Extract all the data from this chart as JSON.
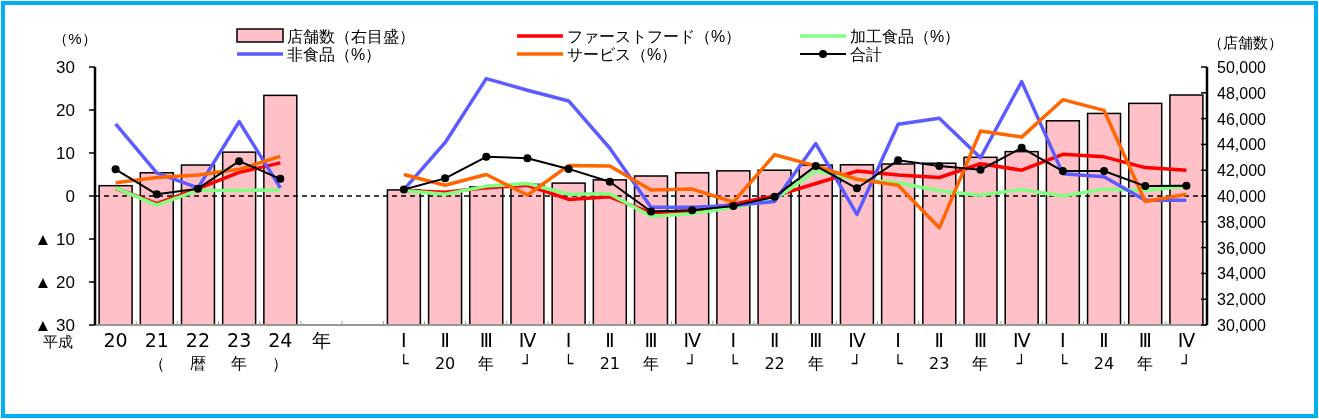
{
  "chart_data": {
    "type": "bar",
    "ylabel": "（%）",
    "y2label": "（店舗数）",
    "categories": [
      "20\n",
      "21\n（",
      "22\n暦",
      "23\n年",
      "24\n）",
      "年",
      null,
      "Ⅰ\n└",
      "Ⅱ\n20",
      "Ⅲ\n年",
      "Ⅳ\n┘",
      "Ⅰ\n└",
      "Ⅱ\n21",
      "Ⅲ\n年",
      "Ⅳ\n┘",
      "Ⅰ\n└",
      "Ⅱ\n22",
      "Ⅲ\n年",
      "Ⅳ\n┘",
      "Ⅰ\n└",
      "Ⅱ\n23",
      "Ⅲ\n年",
      "Ⅳ\n┘",
      "Ⅰ\n└",
      "Ⅱ\n24",
      "Ⅲ\n年",
      "Ⅳ\n┘"
    ],
    "series": [
      {
        "name": "店舗数（右目盛）",
        "axis": "y2",
        "color": "#ffc0c8",
        "values": [
          40800,
          41800,
          42400,
          43400,
          47800,
          null,
          null,
          40470,
          40300,
          40700,
          40900,
          41000,
          41250,
          41550,
          41800,
          41950,
          42000,
          42400,
          42420,
          42480,
          42540,
          43000,
          43440,
          45830,
          46400,
          47180,
          47830
        ]
      },
      {
        "name": "ファーストフード（%）",
        "type": "line",
        "color": "#ff0000",
        "values": [
          1.8,
          -1.8,
          1.7,
          5.5,
          7.7,
          null,
          null,
          1.3,
          0.9,
          1.9,
          2.5,
          -0.8,
          -0.2,
          -3.9,
          -3.5,
          -1.9,
          0.0,
          2.9,
          5.8,
          4.9,
          4.3,
          7.5,
          6.0,
          9.7,
          9.1,
          6.6,
          6.0
        ]
      },
      {
        "name": "加工食品（%）",
        "type": "line",
        "color": "#80ff80",
        "values": [
          1.9,
          -2.1,
          1.3,
          1.3,
          1.4,
          null,
          null,
          1.3,
          0.4,
          2.3,
          2.9,
          0.4,
          0.5,
          -4.7,
          -4.1,
          -2.7,
          -0.8,
          5.8,
          3.9,
          3.1,
          1.2,
          0.2,
          1.5,
          0.0,
          1.6,
          1.3,
          2.3
        ]
      },
      {
        "name": "非食品（%）",
        "type": "line",
        "color": "#5b5bff",
        "values": [
          16.8,
          5.4,
          1.9,
          17.3,
          1.9,
          null,
          null,
          1.5,
          12.4,
          27.3,
          24.6,
          22.1,
          11.1,
          -2.6,
          -2.6,
          -2.2,
          -1.3,
          12.2,
          -4.3,
          16.7,
          18.1,
          8.9,
          26.6,
          5.2,
          4.5,
          -1.0,
          -1.0
        ]
      },
      {
        "name": "サービス（%）",
        "type": "line",
        "color": "#ff6600",
        "values": [
          3.1,
          4.3,
          4.9,
          6.2,
          9.2,
          null,
          null,
          5.0,
          2.5,
          5.0,
          0.2,
          7.1,
          7.0,
          1.4,
          1.6,
          -1.4,
          9.6,
          7.0,
          3.9,
          2.5,
          -7.4,
          15.1,
          13.7,
          22.4,
          19.9,
          -1.3,
          0.4
        ]
      },
      {
        "name": "合計",
        "type": "line",
        "color": "#000000",
        "marker": "circle",
        "values": [
          6.2,
          0.4,
          1.7,
          8.1,
          4.0,
          null,
          null,
          1.5,
          4.1,
          9.1,
          8.8,
          6.3,
          3.3,
          -3.6,
          -3.3,
          -2.3,
          -0.2,
          7.0,
          1.8,
          8.3,
          7.0,
          6.1,
          11.2,
          5.8,
          5.8,
          2.3,
          2.4
        ]
      }
    ],
    "ylim": [
      -30,
      30
    ],
    "yticks": [
      {
        "value": -30,
        "label": "▲ 30"
      },
      {
        "value": -20,
        "label": "▲ 20"
      },
      {
        "value": -10,
        "label": "▲ 10"
      },
      0,
      10,
      20,
      30
    ],
    "y2lim": [
      30000,
      50000
    ],
    "y2ticks": [
      {
        "value": 30000,
        "label": "30,000"
      },
      {
        "value": 32000,
        "label": "32,000"
      },
      {
        "value": 34000,
        "label": "34,000"
      },
      {
        "value": 36000,
        "label": "36,000"
      },
      {
        "value": 38000,
        "label": "38,000"
      },
      {
        "value": 40000,
        "label": "40,000"
      },
      {
        "value": 42000,
        "label": "42,000"
      },
      {
        "value": 44000,
        "label": "44,000"
      },
      {
        "value": 46000,
        "label": "46,000"
      },
      {
        "value": 48000,
        "label": "48,000"
      },
      {
        "value": 50000,
        "label": "50,000"
      }
    ],
    "ref_lines": [
      {
        "axis": "y",
        "value": 0,
        "line_style": "dashed",
        "color": "#000000"
      }
    ],
    "annotations": [
      "平成"
    ],
    "legend": "top",
    "grid": false
  }
}
